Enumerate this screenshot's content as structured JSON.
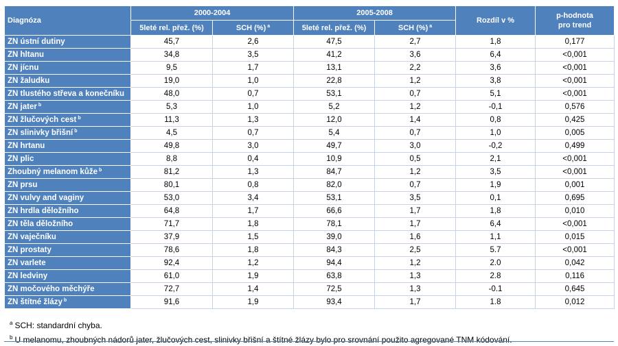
{
  "header": {
    "diag": "Diagnóza",
    "group1": "2000-2004",
    "group2": "2005-2008",
    "diff": "Rozdíl v %",
    "p_line1": "p-hodnota",
    "p_line2": "pro trend",
    "sub_surv": "5leté rel. přež. (%)",
    "sub_sch": "SCH (%)",
    "sub_sch_sup": "a"
  },
  "rows": [
    {
      "name": "ZN ústní dutiny",
      "sup": "",
      "v": [
        "45,7",
        "2,6",
        "47,5",
        "2,7",
        "1,8",
        "0,177"
      ]
    },
    {
      "name": "ZN hltanu",
      "sup": "",
      "v": [
        "34,8",
        "3,5",
        "41,2",
        "3,6",
        "6,4",
        "<0,001"
      ]
    },
    {
      "name": "ZN jícnu",
      "sup": "",
      "v": [
        "9,5",
        "1,7",
        "13,1",
        "2,2",
        "3,6",
        "<0,001"
      ]
    },
    {
      "name": "ZN žaludku",
      "sup": "",
      "v": [
        "19,0",
        "1,0",
        "22,8",
        "1,2",
        "3,8",
        "<0,001"
      ]
    },
    {
      "name": "ZN tlustého střeva a konečníku",
      "sup": "",
      "v": [
        "48,0",
        "0,7",
        "53,1",
        "0,7",
        "5,1",
        "<0,001"
      ]
    },
    {
      "name": "ZN jater",
      "sup": "b",
      "v": [
        "5,3",
        "1,0",
        "5,2",
        "1,2",
        "-0,1",
        "0,576"
      ]
    },
    {
      "name": "ZN žlučových cest",
      "sup": "b",
      "v": [
        "11,3",
        "1,3",
        "12,0",
        "1,4",
        "0,8",
        "0,425"
      ]
    },
    {
      "name": "ZN slinivky břišní",
      "sup": "b",
      "v": [
        "4,5",
        "0,7",
        "5,4",
        "0,7",
        "1,0",
        "0,005"
      ]
    },
    {
      "name": "ZN hrtanu",
      "sup": "",
      "v": [
        "49,8",
        "3,0",
        "49,7",
        "3,0",
        "-0,2",
        "0,499"
      ]
    },
    {
      "name": "ZN plic",
      "sup": "",
      "v": [
        "8,8",
        "0,4",
        "10,9",
        "0,5",
        "2,1",
        "<0,001"
      ]
    },
    {
      "name": "Zhoubný melanom kůže",
      "sup": "b",
      "v": [
        "81,2",
        "1,3",
        "84,7",
        "1,2",
        "3,5",
        "<0,001"
      ]
    },
    {
      "name": "ZN prsu",
      "sup": "",
      "v": [
        "80,1",
        "0,8",
        "82,0",
        "0,7",
        "1,9",
        "0,001"
      ]
    },
    {
      "name": "ZN vulvy and vaginy",
      "sup": "",
      "v": [
        "53,0",
        "3,4",
        "53,1",
        "3,5",
        "0,1",
        "0,695"
      ]
    },
    {
      "name": "ZN hrdla děložního",
      "sup": "",
      "v": [
        "64,8",
        "1,7",
        "66,6",
        "1,7",
        "1,8",
        "0,010"
      ]
    },
    {
      "name": "ZN těla děložního",
      "sup": "",
      "v": [
        "71,7",
        "1,8",
        "78,1",
        "1,7",
        "6,4",
        "<0,001"
      ]
    },
    {
      "name": "ZN vaječníku",
      "sup": "",
      "v": [
        "37,9",
        "1,5",
        "39,0",
        "1,6",
        "1,1",
        "0,015"
      ]
    },
    {
      "name": "ZN prostaty",
      "sup": "",
      "v": [
        "78,6",
        "1,8",
        "84,3",
        "2,5",
        "5.7",
        "<0,001"
      ]
    },
    {
      "name": "ZN varlete",
      "sup": "",
      "v": [
        "92,4",
        "1,2",
        "94,4",
        "1,2",
        "2.0",
        "0,042"
      ]
    },
    {
      "name": "ZN ledviny",
      "sup": "",
      "v": [
        "61,0",
        "1,9",
        "63,8",
        "1,3",
        "2.8",
        "0,116"
      ]
    },
    {
      "name": "ZN močového měchýře",
      "sup": "",
      "v": [
        "72,7",
        "1,4",
        "72,5",
        "1,3",
        "-0.1",
        "0,645"
      ]
    },
    {
      "name": "ZN štítné žlázy",
      "sup": "b",
      "v": [
        "91,6",
        "1,9",
        "93,4",
        "1,7",
        "1.8",
        "0,012"
      ]
    }
  ],
  "notes": [
    {
      "sup": "a",
      "text": "SCH: standardní chyba."
    },
    {
      "sup": "b",
      "text": "U melanomu, zhoubných nádorů jater, žlučových cest, slinivky břišní a štítné žlázy bylo pro srovnání použito agregované TNM kódování."
    }
  ],
  "colors": {
    "header_bg": "#4f81bd",
    "header_text": "#ffffff",
    "body_text": "#000000"
  }
}
